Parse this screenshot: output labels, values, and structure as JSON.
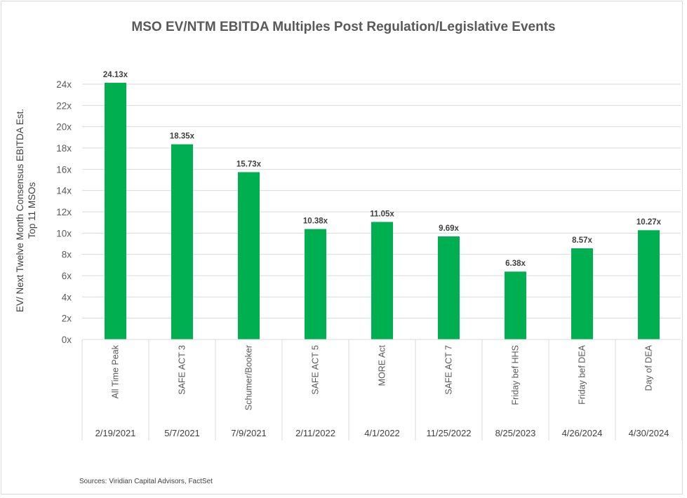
{
  "chart_data": {
    "type": "bar",
    "title": "MSO EV/NTM EBITDA Multiples Post Regulation/Legislative Events",
    "ylabel_lines": [
      "EV/ Next Twelve Month Consensus EBITDA Est.",
      "Top 11 MSOs"
    ],
    "xlabel": "",
    "categories": [
      "All Time Peak",
      "SAFE ACT 3",
      "Schumer/Booker",
      "SAFE ACT 5",
      "MORE Act",
      "SAFE ACT 7",
      "Friday bef HHS",
      "Friday bef DEA",
      "Day of DEA"
    ],
    "dates": [
      "2/19/2021",
      "5/7/2021",
      "7/9/2021",
      "2/11/2022",
      "4/1/2022",
      "11/25/2022",
      "8/25/2023",
      "4/26/2024",
      "4/30/2024"
    ],
    "values": [
      24.13,
      18.35,
      15.73,
      10.38,
      11.05,
      9.69,
      6.38,
      8.57,
      10.27
    ],
    "data_labels": [
      "24.13x",
      "18.35x",
      "15.73x",
      "10.38x",
      "11.05x",
      "9.69x",
      "6.38x",
      "8.57x",
      "10.27x"
    ],
    "ylim": [
      0,
      24
    ],
    "yticks": [
      0,
      2,
      4,
      6,
      8,
      10,
      12,
      14,
      16,
      18,
      20,
      22,
      24
    ],
    "ytick_labels": [
      "0x",
      "2x",
      "4x",
      "6x",
      "8x",
      "10x",
      "12x",
      "14x",
      "16x",
      "18x",
      "20x",
      "22x",
      "24x"
    ],
    "grid": true,
    "legend": "none",
    "bar_color": "#00b050",
    "source": "Sources: Viridian Capital Advisors, FactSet"
  }
}
